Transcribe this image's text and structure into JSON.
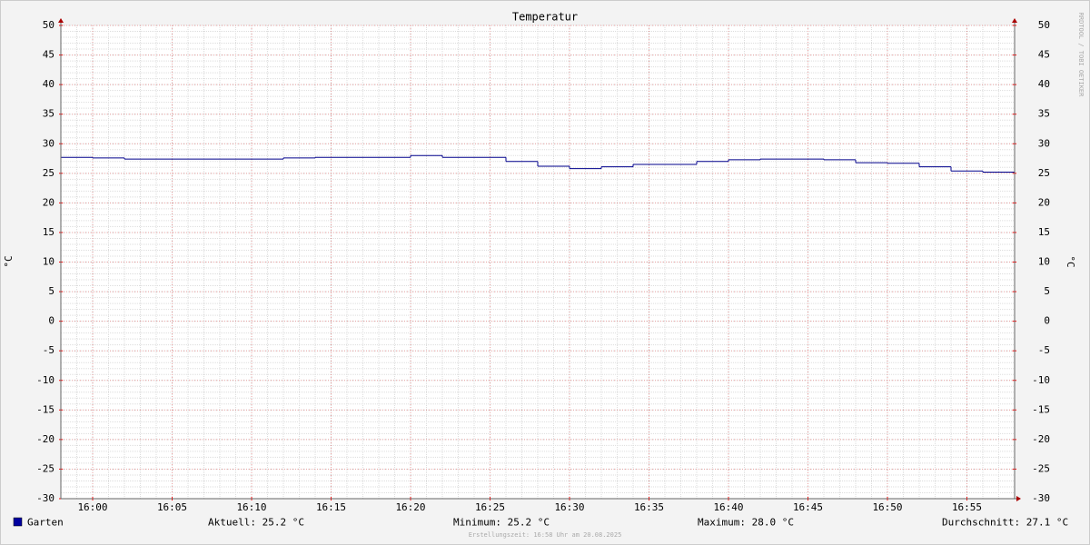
{
  "chart_data": {
    "type": "step",
    "title": "Temperatur",
    "y_label": "°C",
    "y2_label": "°C",
    "watermark": "RRDTOOL / TOBI OETIKER",
    "footer": "Erstellungszeit: 16:58 Uhr am 20.08.2025",
    "x": [
      "15:58",
      "16:00",
      "16:02",
      "16:04",
      "16:06",
      "16:08",
      "16:10",
      "16:12",
      "16:14",
      "16:16",
      "16:18",
      "16:20",
      "16:22",
      "16:24",
      "16:26",
      "16:28",
      "16:30",
      "16:32",
      "16:34",
      "16:36",
      "16:38",
      "16:40",
      "16:42",
      "16:44",
      "16:46",
      "16:48",
      "16:50",
      "16:52",
      "16:54",
      "16:56"
    ],
    "series": [
      {
        "name": "Garten",
        "color": "#00008b",
        "values": [
          27.7,
          27.6,
          27.4,
          27.4,
          27.4,
          27.4,
          27.4,
          27.6,
          27.7,
          27.7,
          27.7,
          28.0,
          27.7,
          27.7,
          27.0,
          26.2,
          25.8,
          26.1,
          26.5,
          26.5,
          27.0,
          27.3,
          27.4,
          27.4,
          27.3,
          26.8,
          26.7,
          26.1,
          25.4,
          25.2
        ]
      }
    ],
    "legend_color": "#0000a0",
    "stats": [
      {
        "label": "Aktuell:",
        "value": 25.2,
        "unit": "°C"
      },
      {
        "label": "Minimum:",
        "value": 25.2,
        "unit": "°C"
      },
      {
        "label": "Maximum:",
        "value": 28.0,
        "value_label": "28.0",
        "unit": "°C"
      },
      {
        "label": "Durchschnitt:",
        "value": 27.1,
        "unit": "°C"
      }
    ],
    "xlim": [
      "15:58",
      "16:58"
    ],
    "xticks": [
      "16:00",
      "16:05",
      "16:10",
      "16:15",
      "16:20",
      "16:25",
      "16:30",
      "16:35",
      "16:40",
      "16:45",
      "16:50",
      "16:55"
    ],
    "ylim": [
      -30,
      50
    ],
    "yticks": [
      -30,
      -25,
      -20,
      -15,
      -10,
      -5,
      0,
      5,
      10,
      15,
      20,
      25,
      30,
      35,
      40,
      45,
      50
    ],
    "y2lim": [
      -30,
      50
    ],
    "y2ticks": [
      -30,
      -25,
      -20,
      -15,
      -10,
      -5,
      0,
      5,
      10,
      15,
      20,
      25,
      30,
      35,
      40,
      45,
      50
    ],
    "grid": true,
    "minor_grid": {
      "y": 1,
      "x_minutes": 1
    }
  }
}
